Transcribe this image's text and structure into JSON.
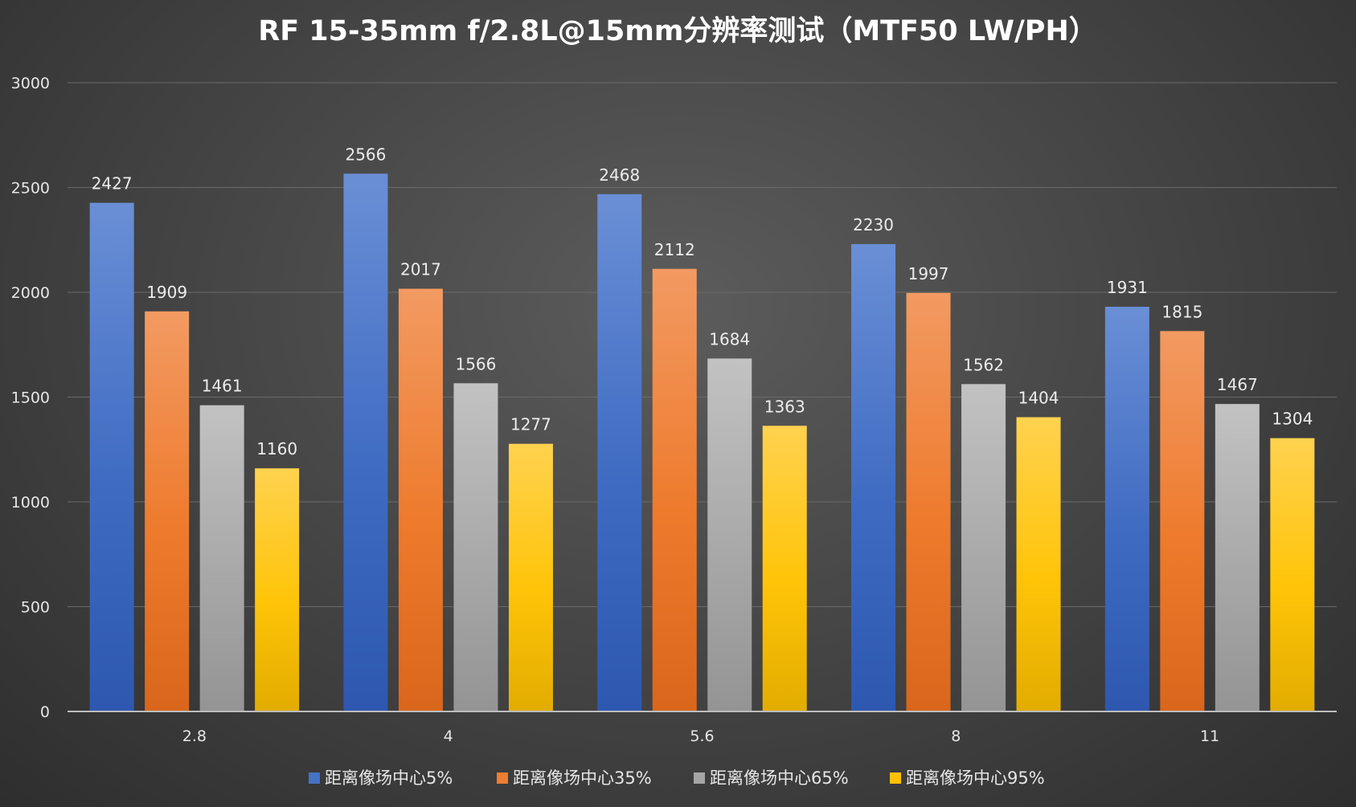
{
  "chart_data": {
    "type": "bar",
    "title": "RF 15-35mm f/2.8L@15mm分辨率测试（MTF50 LW/PH）",
    "categories": [
      "2.8",
      "4",
      "5.6",
      "8",
      "11"
    ],
    "series": [
      {
        "name": "距离像场中心5%",
        "values": [
          2427,
          2566,
          2468,
          2230,
          1931
        ],
        "color": "#4472c4"
      },
      {
        "name": "距离像场中心35%",
        "values": [
          1909,
          2017,
          2112,
          1997,
          1815
        ],
        "color": "#ed7d31"
      },
      {
        "name": "距离像场中心65%",
        "values": [
          1461,
          1566,
          1684,
          1562,
          1467
        ],
        "color": "#a5a5a5"
      },
      {
        "name": "距离像场中心95%",
        "values": [
          1160,
          1277,
          1363,
          1404,
          1304
        ],
        "color": "#ffc000"
      }
    ],
    "y_ticks": [
      "0",
      "500",
      "1000",
      "1500",
      "2000",
      "2500",
      "3000"
    ],
    "ylim": [
      0,
      3000
    ],
    "xlabel": "",
    "ylabel": "",
    "grid": true,
    "legend_position": "bottom"
  }
}
